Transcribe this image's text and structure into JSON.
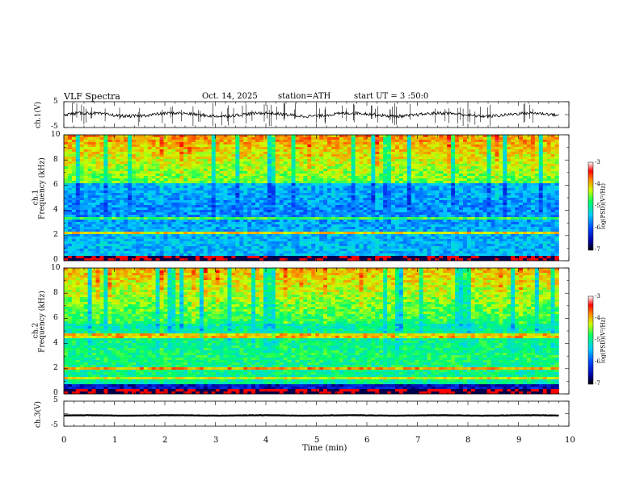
{
  "header": {
    "title": "VLF  Spectra",
    "date": "Oct. 14, 2025",
    "station": "station=ATH",
    "start": "start  UT  =    3  :50:0"
  },
  "chart_data": [
    {
      "type": "line",
      "id": "ch1-waveform",
      "ylabel": "ch.1(V)",
      "ylim": [
        -5,
        5
      ],
      "y_ticks": [
        "5",
        "-5"
      ],
      "x_range_min": [
        0,
        9.8
      ],
      "series": [
        {
          "name": "ch.1 voltage",
          "level": 0,
          "spread": 1.2
        }
      ]
    },
    {
      "type": "heatmap",
      "id": "ch1-spectrogram",
      "ylabel_top": "ch.1",
      "ylabel": "Frequency  (kHz)",
      "ylim": [
        0,
        10
      ],
      "y_ticks": [
        "0",
        "2",
        "4",
        "6",
        "8",
        "10"
      ],
      "x_range_min": [
        0,
        9.8
      ],
      "colorbar": {
        "label": "log(PSD)(V²/Hz)",
        "range": [
          -7,
          -3
        ],
        "ticks": [
          "-3",
          "-4",
          "-5",
          "-6",
          "-7"
        ]
      }
    },
    {
      "type": "heatmap",
      "id": "ch2-spectrogram",
      "ylabel_top": "ch.2",
      "ylabel": "Frequency  (kHz)",
      "ylim": [
        0,
        10
      ],
      "y_ticks": [
        "0",
        "2",
        "4",
        "6",
        "8",
        "10"
      ],
      "x_range_min": [
        0,
        9.8
      ],
      "colorbar": {
        "label": "log(PSD)(V²/Hz)",
        "range": [
          -7,
          -3
        ],
        "ticks": [
          "-3",
          "-4",
          "-5",
          "-6",
          "-7"
        ]
      }
    },
    {
      "type": "line",
      "id": "ch3-waveform",
      "ylabel": "ch.3(V)",
      "ylim": [
        -5,
        5
      ],
      "y_ticks": [
        "5",
        "0",
        "-5"
      ],
      "x_range_min": [
        0,
        9.8
      ],
      "series": [
        {
          "name": "ch.3 voltage",
          "level": -0.7,
          "spread": 0.15
        }
      ]
    }
  ],
  "x_axis": {
    "label": "Time  (min)",
    "range": [
      0,
      10
    ],
    "ticks": [
      "0",
      "1",
      "2",
      "3",
      "4",
      "5",
      "6",
      "7",
      "8",
      "9",
      "10"
    ]
  },
  "colors": {
    "axis": "#000000",
    "trace": "#000000",
    "background": "#ffffff"
  }
}
